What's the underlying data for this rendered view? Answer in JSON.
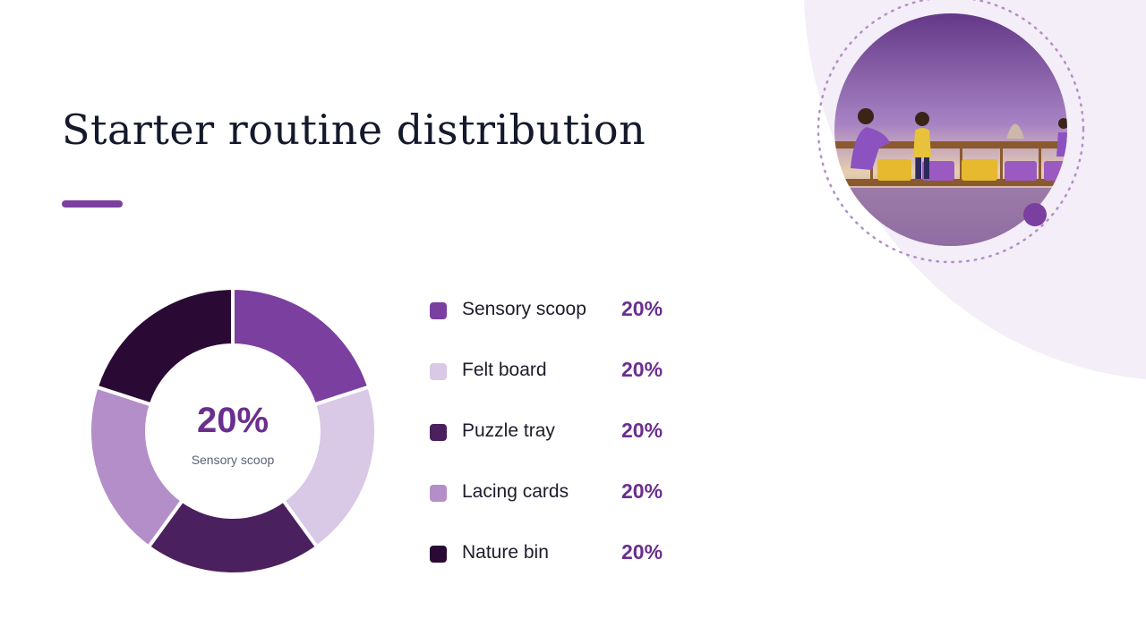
{
  "slide": {
    "title": "Starter routine distribution"
  },
  "colors": {
    "accent": "#7b3fa0",
    "background_blob": "#f3eef7",
    "title": "#14192b",
    "value": "#6a2f8e"
  },
  "chart_data": {
    "type": "pie",
    "donut": true,
    "title": "",
    "categories": [
      "Sensory scoop",
      "Felt board",
      "Puzzle tray",
      "Lacing cards",
      "Nature bin"
    ],
    "values": [
      20,
      20,
      20,
      20,
      20
    ],
    "value_labels": [
      "20%",
      "20%",
      "20%",
      "20%",
      "20%"
    ],
    "colors": [
      "#7b3fa0",
      "#d9c8e6",
      "#4a205f",
      "#b48ec9",
      "#2a0a35"
    ],
    "center": {
      "value": "20%",
      "label": "Sensory scoop"
    },
    "legend": "right"
  },
  "image": {
    "icon": "classroom-illustration-icon",
    "description_shown": false
  }
}
